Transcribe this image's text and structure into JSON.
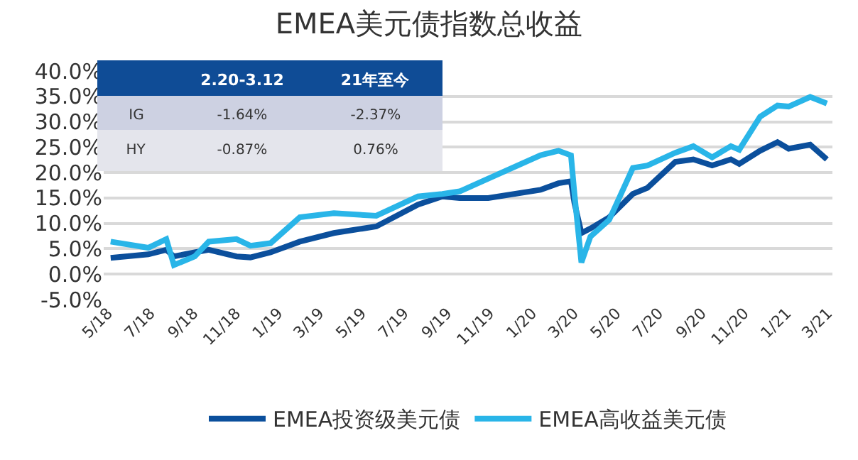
{
  "chart_data": {
    "type": "line",
    "title": "EMEA美元债指数总收益",
    "x": [
      "2018-05-05",
      "2018-06-28",
      "2018-07-24",
      "2018-08-04",
      "2018-09-03",
      "2018-09-23",
      "2018-11-02",
      "2018-11-22",
      "2018-12-21",
      "2019-02-01",
      "2019-03-22",
      "2019-05-22",
      "2019-07-21",
      "2019-08-25",
      "2019-09-19",
      "2019-10-30",
      "2020-01-13",
      "2020-02-08",
      "2020-02-26",
      "2020-03-02",
      "2020-03-12",
      "2020-03-25",
      "2020-04-21",
      "2020-05-25",
      "2020-06-15",
      "2020-07-25",
      "2020-08-20",
      "2020-09-16",
      "2020-10-13",
      "2020-10-25",
      "2020-11-24",
      "2020-12-19",
      "2021-01-04",
      "2021-02-04",
      "2021-02-28"
    ],
    "series": [
      {
        "name": "EMEA投资级美元债",
        "color": "#0b4f9c",
        "values": [
          3.2,
          3.9,
          4.8,
          3.5,
          4.3,
          4.8,
          3.5,
          3.3,
          4.3,
          6.4,
          8.1,
          9.4,
          13.7,
          15.3,
          15.0,
          15.0,
          16.6,
          17.9,
          18.3,
          14.0,
          8.1,
          9.0,
          11.2,
          15.8,
          17.0,
          22.1,
          22.6,
          21.4,
          22.6,
          21.7,
          24.3,
          26.0,
          24.7,
          25.5,
          22.6
        ]
      },
      {
        "name": "EMEA高收益美元债",
        "color": "#29b5e8",
        "values": [
          6.4,
          5.2,
          6.9,
          1.8,
          3.5,
          6.4,
          6.9,
          5.6,
          6.1,
          11.2,
          12.0,
          11.5,
          15.3,
          15.8,
          16.3,
          18.8,
          23.4,
          24.3,
          23.4,
          15.8,
          2.3,
          7.4,
          10.7,
          20.9,
          21.4,
          23.9,
          25.2,
          23.0,
          25.2,
          24.5,
          31.0,
          33.2,
          33.0,
          34.9,
          33.6
        ]
      }
    ],
    "xlim": [
      "2018-04-25",
      "2021-03-08"
    ],
    "xticks": [
      {
        "value": "2018-05-01",
        "label": "5/18"
      },
      {
        "value": "2018-07-01",
        "label": "7/18"
      },
      {
        "value": "2018-09-01",
        "label": "9/18"
      },
      {
        "value": "2018-11-01",
        "label": "11/18"
      },
      {
        "value": "2019-01-01",
        "label": "1/19"
      },
      {
        "value": "2019-03-01",
        "label": "3/19"
      },
      {
        "value": "2019-05-01",
        "label": "5/19"
      },
      {
        "value": "2019-07-01",
        "label": "7/19"
      },
      {
        "value": "2019-09-01",
        "label": "9/19"
      },
      {
        "value": "2019-11-01",
        "label": "11/19"
      },
      {
        "value": "2020-01-01",
        "label": "1/20"
      },
      {
        "value": "2020-03-01",
        "label": "3/20"
      },
      {
        "value": "2020-05-01",
        "label": "5/20"
      },
      {
        "value": "2020-07-01",
        "label": "7/20"
      },
      {
        "value": "2020-09-01",
        "label": "9/20"
      },
      {
        "value": "2020-11-01",
        "label": "11/20"
      },
      {
        "value": "2021-01-01",
        "label": "1/21"
      },
      {
        "value": "2021-03-01",
        "label": "3/21"
      }
    ],
    "ylim": [
      -5,
      40
    ],
    "yticks": [
      {
        "value": -5,
        "label": "-5.0%"
      },
      {
        "value": 0,
        "label": "0.0%"
      },
      {
        "value": 5,
        "label": "5.0%"
      },
      {
        "value": 10,
        "label": "10.0%"
      },
      {
        "value": 15,
        "label": "15.0%"
      },
      {
        "value": 20,
        "label": "20.0%"
      },
      {
        "value": 25,
        "label": "25.0%"
      },
      {
        "value": 30,
        "label": "30.0%"
      },
      {
        "value": 35,
        "label": "35.0%"
      },
      {
        "value": 40,
        "label": "40.0%"
      }
    ],
    "grid": "y",
    "legend": "bottom",
    "marker": "none",
    "line_style": "solid",
    "annotations": [
      "2.20-3.12",
      "21年至今",
      "IG",
      "-1.64%",
      "-2.37%",
      "HY",
      "-0.87%",
      "0.76%"
    ]
  }
}
